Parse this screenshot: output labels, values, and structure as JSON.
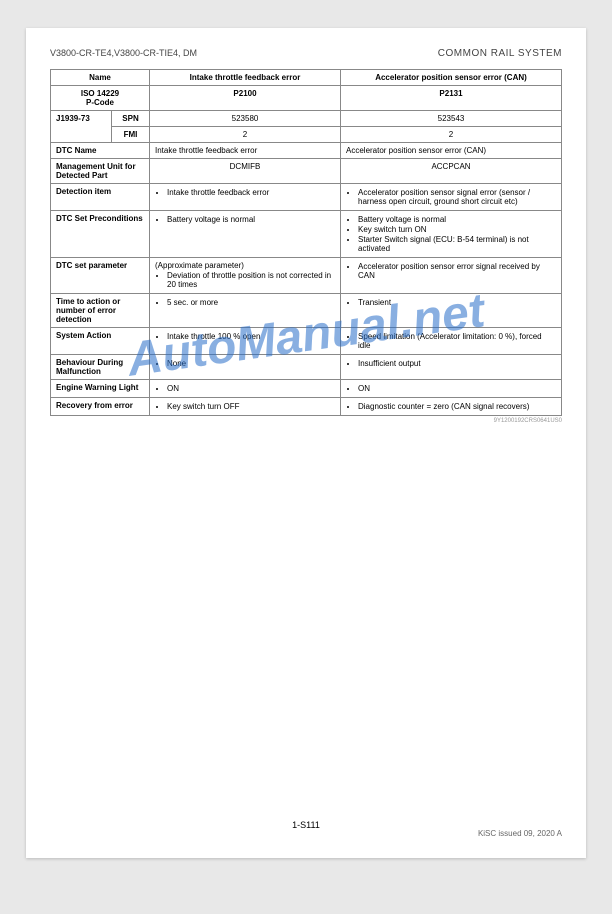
{
  "header": {
    "left": "V3800-CR-TE4,V3800-CR-TIE4, DM",
    "right": "COMMON RAIL SYSTEM"
  },
  "watermark": "AutoManual.net",
  "table": {
    "name_header": "Name",
    "col_a_header": "Intake throttle feedback error",
    "col_b_header": "Accelerator position sensor error (CAN)",
    "iso_label": "ISO 14229\nP-Code",
    "iso_a": "P2100",
    "iso_b": "P2131",
    "j1939_label": "J1939-73",
    "spn_label": "SPN",
    "spn_a": "523580",
    "spn_b": "523543",
    "fmi_label": "FMI",
    "fmi_a": "2",
    "fmi_b": "2",
    "dtc_name_label": "DTC Name",
    "dtc_name_a": "Intake throttle feedback error",
    "dtc_name_b": "Accelerator position sensor error (CAN)",
    "mgmt_label": "Management Unit for Detected Part",
    "mgmt_a": "DCMIFB",
    "mgmt_b": "ACCPCAN",
    "detection_label": "Detection item",
    "detection_a": "Intake throttle feedback error",
    "detection_b": "Accelerator position sensor signal error (sensor / harness open circuit, ground short circuit etc)",
    "precond_label": "DTC Set Preconditions",
    "precond_a": "Battery voltage is normal",
    "precond_b1": "Battery voltage is normal",
    "precond_b2": "Key switch turn ON",
    "precond_b3": "Starter Switch signal (ECU: B-54 terminal) is not activated",
    "param_label": "DTC set parameter",
    "param_a_pre": "(Approximate parameter)",
    "param_a": "Deviation of throttle position is not corrected in 20 times",
    "param_b": "Accelerator position sensor error signal received by CAN",
    "time_label": "Time to action or number of error detection",
    "time_a": "5 sec. or more",
    "time_b": "Transient",
    "action_label": "System Action",
    "action_a": "Intake throttle 100 % open",
    "action_b": "Speed limitation (Accelerator limitation: 0 %), forced idle",
    "behav_label": "Behaviour During Malfunction",
    "behav_a": "None",
    "behav_b": "Insufficient output",
    "ewl_label": "Engine Warning Light",
    "ewl_a": "ON",
    "ewl_b": "ON",
    "recov_label": "Recovery from error",
    "recov_a": "Key switch turn OFF",
    "recov_b": "Diagnostic counter = zero (CAN signal recovers)"
  },
  "code_small": "9Y1200192CRS0641US0",
  "page_num": "1-S111",
  "footer_right": "KiSC issued 09, 2020 A"
}
